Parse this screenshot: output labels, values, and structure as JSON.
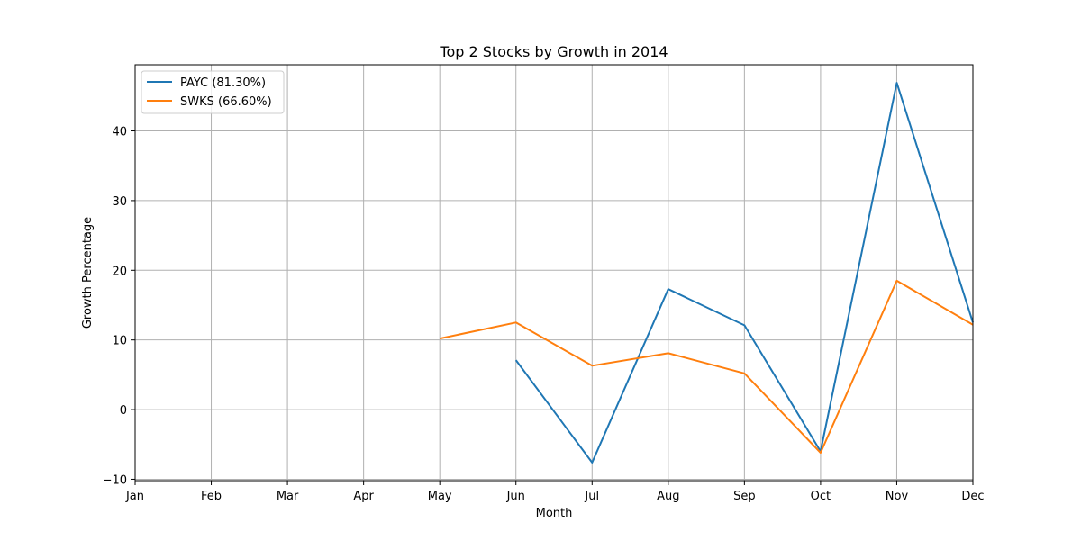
{
  "chart_data": {
    "type": "line",
    "title": "Top 2 Stocks by Growth in 2014",
    "xlabel": "Month",
    "ylabel": "Growth Percentage",
    "categories": [
      "Jan",
      "Feb",
      "Mar",
      "Apr",
      "May",
      "Jun",
      "Jul",
      "Aug",
      "Sep",
      "Oct",
      "Nov",
      "Dec"
    ],
    "ylim": [
      -10.2,
      49.5
    ],
    "yticks": [
      -10,
      0,
      10,
      20,
      30,
      40
    ],
    "grid": true,
    "legend_position": "top-left",
    "series": [
      {
        "name": "PAYC (81.30%)",
        "color": "#1f77b4",
        "values": [
          null,
          null,
          null,
          null,
          null,
          7.1,
          -7.6,
          17.3,
          12.1,
          -6.0,
          46.9,
          12.5
        ]
      },
      {
        "name": "SWKS (66.60%)",
        "color": "#ff7f0e",
        "values": [
          null,
          null,
          null,
          null,
          10.2,
          12.5,
          6.3,
          8.1,
          5.2,
          -6.2,
          18.5,
          12.2
        ]
      }
    ]
  }
}
